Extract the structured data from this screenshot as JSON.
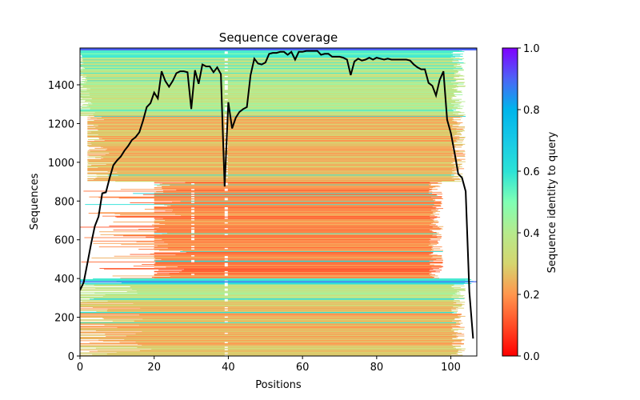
{
  "chart_data": {
    "type": "heatmap",
    "title": "Sequence coverage",
    "xlabel": "Positions",
    "ylabel": "Sequences",
    "xlim": [
      0,
      107
    ],
    "ylim": [
      0,
      1590
    ],
    "x_ticks": [
      0,
      20,
      40,
      60,
      80,
      100
    ],
    "x_tick_labels": [
      "0",
      "20",
      "40",
      "60",
      "80",
      "100"
    ],
    "y_ticks": [
      0,
      200,
      400,
      600,
      800,
      1000,
      1200,
      1400
    ],
    "y_tick_labels": [
      "0",
      "200",
      "400",
      "600",
      "800",
      "1000",
      "1200",
      "1400"
    ],
    "grid": false,
    "colorbar": {
      "label": "Sequence identity to query",
      "colormap": "rainbow_r",
      "range": [
        0.0,
        1.0
      ],
      "ticks": [
        0.0,
        0.2,
        0.4,
        0.6,
        0.8,
        1.0
      ],
      "tick_labels": [
        "0.0",
        "0.2",
        "0.4",
        "0.6",
        "0.8",
        "1.0"
      ],
      "placement": "right"
    },
    "heatmap_blocks": [
      {
        "seq_range": [
          1540,
          1590
        ],
        "identity": 0.55,
        "x_range": [
          0,
          104
        ]
      },
      {
        "seq_range": [
          1240,
          1540
        ],
        "identity": 0.38,
        "x_range": [
          0,
          104
        ]
      },
      {
        "seq_range": [
          900,
          1240
        ],
        "identity": 0.25,
        "x_range": [
          2,
          104
        ]
      },
      {
        "seq_range": [
          400,
          900
        ],
        "identity": 0.18,
        "x_range": [
          20,
          98
        ]
      },
      {
        "seq_range": [
          370,
          400
        ],
        "identity": 0.6,
        "x_range": [
          0,
          107
        ]
      },
      {
        "seq_range": [
          280,
          370
        ],
        "identity": 0.37,
        "x_range": [
          0,
          104
        ]
      },
      {
        "seq_range": [
          0,
          280
        ],
        "identity": 0.25,
        "x_range": [
          0,
          104
        ]
      }
    ],
    "series": [
      {
        "name": "coverage",
        "color": "#000000",
        "x": [
          0,
          1,
          2,
          3,
          4,
          5,
          6,
          7,
          8,
          9,
          10,
          11,
          12,
          13,
          14,
          15,
          16,
          17,
          18,
          19,
          20,
          21,
          22,
          23,
          24,
          25,
          26,
          27,
          28,
          29,
          30,
          31,
          32,
          33,
          34,
          35,
          36,
          37,
          38,
          39,
          40,
          41,
          42,
          43,
          44,
          45,
          46,
          47,
          48,
          49,
          50,
          51,
          52,
          53,
          54,
          55,
          56,
          57,
          58,
          59,
          60,
          61,
          62,
          63,
          64,
          65,
          66,
          67,
          68,
          69,
          70,
          71,
          72,
          73,
          74,
          75,
          76,
          77,
          78,
          79,
          80,
          81,
          82,
          83,
          84,
          85,
          86,
          87,
          88,
          89,
          90,
          91,
          92,
          93,
          94,
          95,
          96,
          97,
          98,
          99,
          100,
          101,
          102,
          103,
          104,
          105,
          106
        ],
        "values": [
          340,
          380,
          480,
          580,
          670,
          720,
          840,
          845,
          920,
          985,
          1010,
          1030,
          1060,
          1085,
          1115,
          1130,
          1155,
          1215,
          1285,
          1305,
          1360,
          1330,
          1470,
          1420,
          1390,
          1420,
          1460,
          1470,
          1470,
          1465,
          1275,
          1475,
          1405,
          1505,
          1495,
          1495,
          1465,
          1490,
          1455,
          875,
          1310,
          1175,
          1230,
          1260,
          1275,
          1285,
          1450,
          1535,
          1510,
          1505,
          1515,
          1560,
          1565,
          1565,
          1570,
          1570,
          1555,
          1570,
          1530,
          1570,
          1570,
          1575,
          1575,
          1575,
          1575,
          1555,
          1560,
          1560,
          1545,
          1545,
          1545,
          1540,
          1530,
          1450,
          1520,
          1535,
          1525,
          1530,
          1540,
          1530,
          1540,
          1535,
          1530,
          1535,
          1530,
          1530,
          1530,
          1530,
          1530,
          1525,
          1505,
          1490,
          1480,
          1480,
          1410,
          1395,
          1345,
          1425,
          1470,
          1220,
          1150,
          1050,
          940,
          920,
          850,
          330,
          90
        ]
      }
    ]
  }
}
